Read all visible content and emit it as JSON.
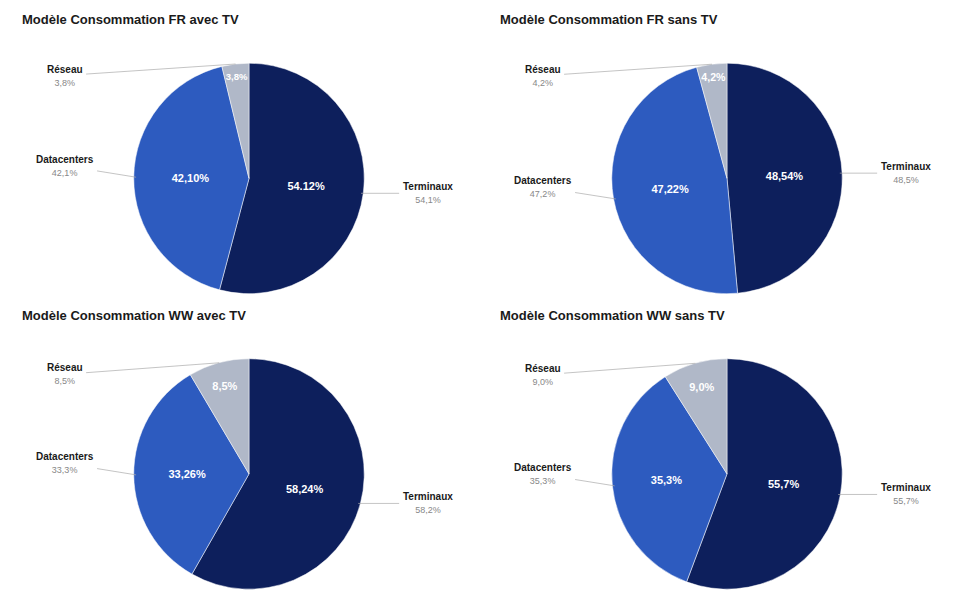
{
  "chart_data": [
    {
      "type": "pie",
      "title": "Modèle Consommation FR avec TV",
      "categories": [
        "Terminaux",
        "Datacenters",
        "Réseau"
      ],
      "values": [
        54.12,
        42.1,
        3.78
      ],
      "value_labels": [
        "54.12%",
        "42,10%",
        "3,8%"
      ],
      "data_labels": true,
      "annotations": [
        "54,1%",
        "42,1%",
        "3,8%"
      ],
      "colors": [
        "#0d1f5c",
        "#2d5bbf",
        "#b0b8c8"
      ]
    },
    {
      "type": "pie",
      "title": "Modèle Consommation FR sans TV",
      "categories": [
        "Terminaux",
        "Datacenters",
        "Réseau"
      ],
      "values": [
        48.54,
        47.22,
        4.24
      ],
      "value_labels": [
        "48,54%",
        "47,22%",
        "4,2%"
      ],
      "data_labels": true,
      "annotations": [
        "48,5%",
        "47,2%",
        "4,2%"
      ],
      "colors": [
        "#0d1f5c",
        "#2d5bbf",
        "#b0b8c8"
      ]
    },
    {
      "type": "pie",
      "title": "Modèle Consommation WW avec TV",
      "categories": [
        "Terminaux",
        "Datacenters",
        "Réseau"
      ],
      "values": [
        58.24,
        33.26,
        8.5
      ],
      "value_labels": [
        "58,24%",
        "33,26%",
        "8,5%"
      ],
      "data_labels": true,
      "annotations": [
        "58,2%",
        "33,3%",
        "8,5%"
      ],
      "colors": [
        "#0d1f5c",
        "#2d5bbf",
        "#b0b8c8"
      ]
    },
    {
      "type": "pie",
      "title": "Modèle Consommation WW sans TV",
      "categories": [
        "Terminaux",
        "Datacenters",
        "Réseau"
      ],
      "values": [
        55.7,
        35.3,
        9.0
      ],
      "value_labels": [
        "55,7%",
        "35,3%",
        "9,0%"
      ],
      "data_labels": true,
      "annotations": [
        "55,7%",
        "35,3%",
        "9,0%"
      ],
      "colors": [
        "#0d1f5c",
        "#2d5bbf",
        "#b0b8c8"
      ]
    }
  ]
}
